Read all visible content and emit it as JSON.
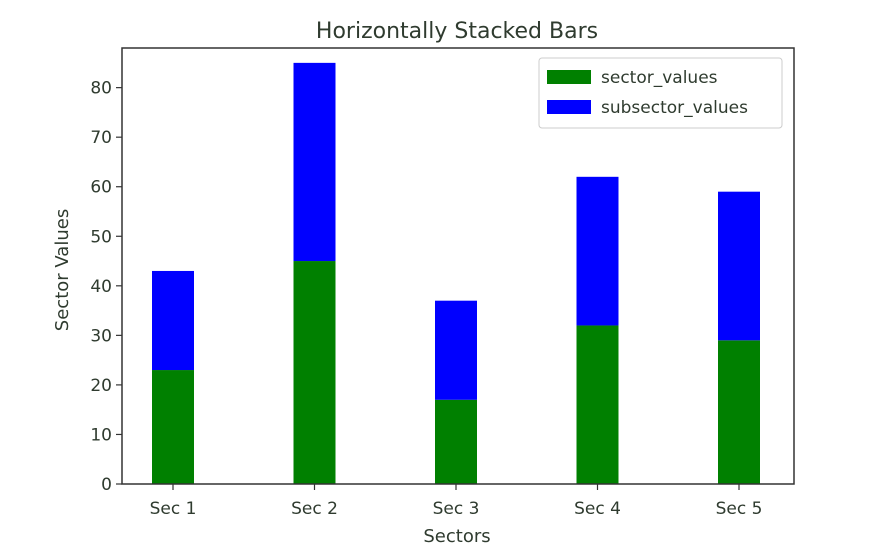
{
  "chart_data": {
    "type": "bar",
    "stacked": true,
    "title": "Horizontally Stacked Bars",
    "xlabel": "Sectors",
    "ylabel": "Sector Values",
    "categories": [
      "Sec 1",
      "Sec 2",
      "Sec 3",
      "Sec 4",
      "Sec 5"
    ],
    "series": [
      {
        "name": "sector_values",
        "color": "#008000",
        "values": [
          23,
          45,
          17,
          32,
          29
        ]
      },
      {
        "name": "subsector_values",
        "color": "#0000ff",
        "values": [
          20,
          40,
          20,
          30,
          30
        ]
      }
    ],
    "ylim": [
      0,
      88
    ],
    "yticks": [
      0,
      10,
      20,
      30,
      40,
      50,
      60,
      70,
      80
    ],
    "grid": false,
    "legend_position": "top-right"
  }
}
